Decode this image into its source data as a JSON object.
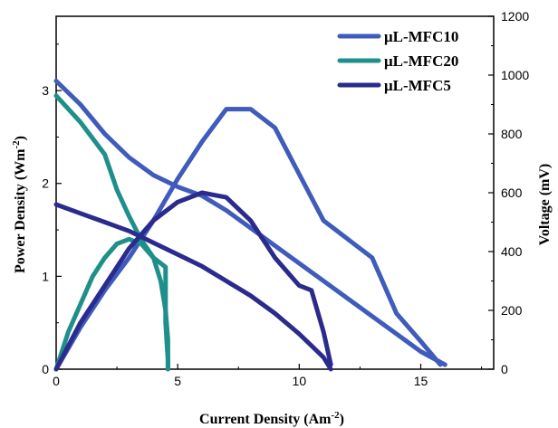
{
  "chart_data": {
    "type": "line",
    "title": "",
    "xlabel": {
      "base": "Current Density (Am",
      "sup": "-2",
      "close": ")"
    },
    "ylabel_left": {
      "base": "Power Density (Wm",
      "sup": "-2",
      "close": ")"
    },
    "ylabel_right": "Voltage (mV)",
    "xlim": [
      0,
      18
    ],
    "ylim_left": [
      0,
      3.8
    ],
    "ylim_right": [
      0,
      1200
    ],
    "xticks": [
      "0",
      "5",
      "10",
      "15"
    ],
    "yticks_left": [
      "0",
      "1",
      "2",
      "3"
    ],
    "yticks_right": [
      "0",
      "200",
      "400",
      "600",
      "800",
      "1000",
      "1200"
    ],
    "legend_position": "top-right",
    "grid": false,
    "series": [
      {
        "name": "μL-MFC10",
        "color": "#3f5bbb",
        "power_density": [
          [
            0,
            0
          ],
          [
            1,
            0.45
          ],
          [
            2,
            0.85
          ],
          [
            3,
            1.2
          ],
          [
            4,
            1.6
          ],
          [
            5,
            2.05
          ],
          [
            6,
            2.45
          ],
          [
            7,
            2.8
          ],
          [
            8,
            2.8
          ],
          [
            9,
            2.6
          ],
          [
            10,
            2.1
          ],
          [
            11,
            1.6
          ],
          [
            12,
            1.4
          ],
          [
            13,
            1.2
          ],
          [
            13.5,
            0.9
          ],
          [
            14,
            0.6
          ],
          [
            15,
            0.3
          ],
          [
            15.8,
            0.05
          ]
        ],
        "voltage": [
          [
            0,
            980
          ],
          [
            1,
            900
          ],
          [
            2,
            800
          ],
          [
            3,
            720
          ],
          [
            4,
            660
          ],
          [
            5,
            620
          ],
          [
            6,
            590
          ],
          [
            7,
            540
          ],
          [
            8,
            480
          ],
          [
            9,
            420
          ],
          [
            10,
            360
          ],
          [
            11,
            300
          ],
          [
            12,
            240
          ],
          [
            13,
            180
          ],
          [
            14,
            120
          ],
          [
            15,
            60
          ],
          [
            16,
            15
          ]
        ]
      },
      {
        "name": "μL-MFC20",
        "color": "#1e8f8a",
        "power_density": [
          [
            0,
            0
          ],
          [
            0.5,
            0.4
          ],
          [
            1,
            0.7
          ],
          [
            1.5,
            1.0
          ],
          [
            2,
            1.2
          ],
          [
            2.5,
            1.35
          ],
          [
            3,
            1.4
          ],
          [
            3.5,
            1.35
          ],
          [
            4,
            1.2
          ],
          [
            4.5,
            1.1
          ],
          [
            4.5,
            0.5
          ],
          [
            4.6,
            0.1
          ],
          [
            4.6,
            0
          ]
        ],
        "voltage": [
          [
            0,
            930
          ],
          [
            1,
            840
          ],
          [
            2,
            730
          ],
          [
            2.5,
            610
          ],
          [
            3,
            520
          ],
          [
            3.5,
            440
          ],
          [
            4,
            380
          ],
          [
            4.3,
            300
          ],
          [
            4.5,
            200
          ],
          [
            4.6,
            100
          ],
          [
            4.6,
            0
          ]
        ]
      },
      {
        "name": "μL-MFC5",
        "color": "#2b2b8e",
        "power_density": [
          [
            0,
            0
          ],
          [
            1,
            0.5
          ],
          [
            2,
            0.9
          ],
          [
            3,
            1.3
          ],
          [
            4,
            1.6
          ],
          [
            5,
            1.8
          ],
          [
            6,
            1.9
          ],
          [
            7,
            1.85
          ],
          [
            8,
            1.6
          ],
          [
            9,
            1.2
          ],
          [
            10,
            0.9
          ],
          [
            10.5,
            0.85
          ],
          [
            11,
            0.4
          ],
          [
            11.3,
            0.05
          ]
        ],
        "voltage": [
          [
            0,
            560
          ],
          [
            1,
            530
          ],
          [
            2,
            500
          ],
          [
            3,
            470
          ],
          [
            4,
            430
          ],
          [
            5,
            390
          ],
          [
            6,
            350
          ],
          [
            7,
            300
          ],
          [
            8,
            250
          ],
          [
            9,
            190
          ],
          [
            10,
            120
          ],
          [
            10.5,
            80
          ],
          [
            11,
            40
          ],
          [
            11.3,
            0
          ]
        ]
      }
    ]
  }
}
